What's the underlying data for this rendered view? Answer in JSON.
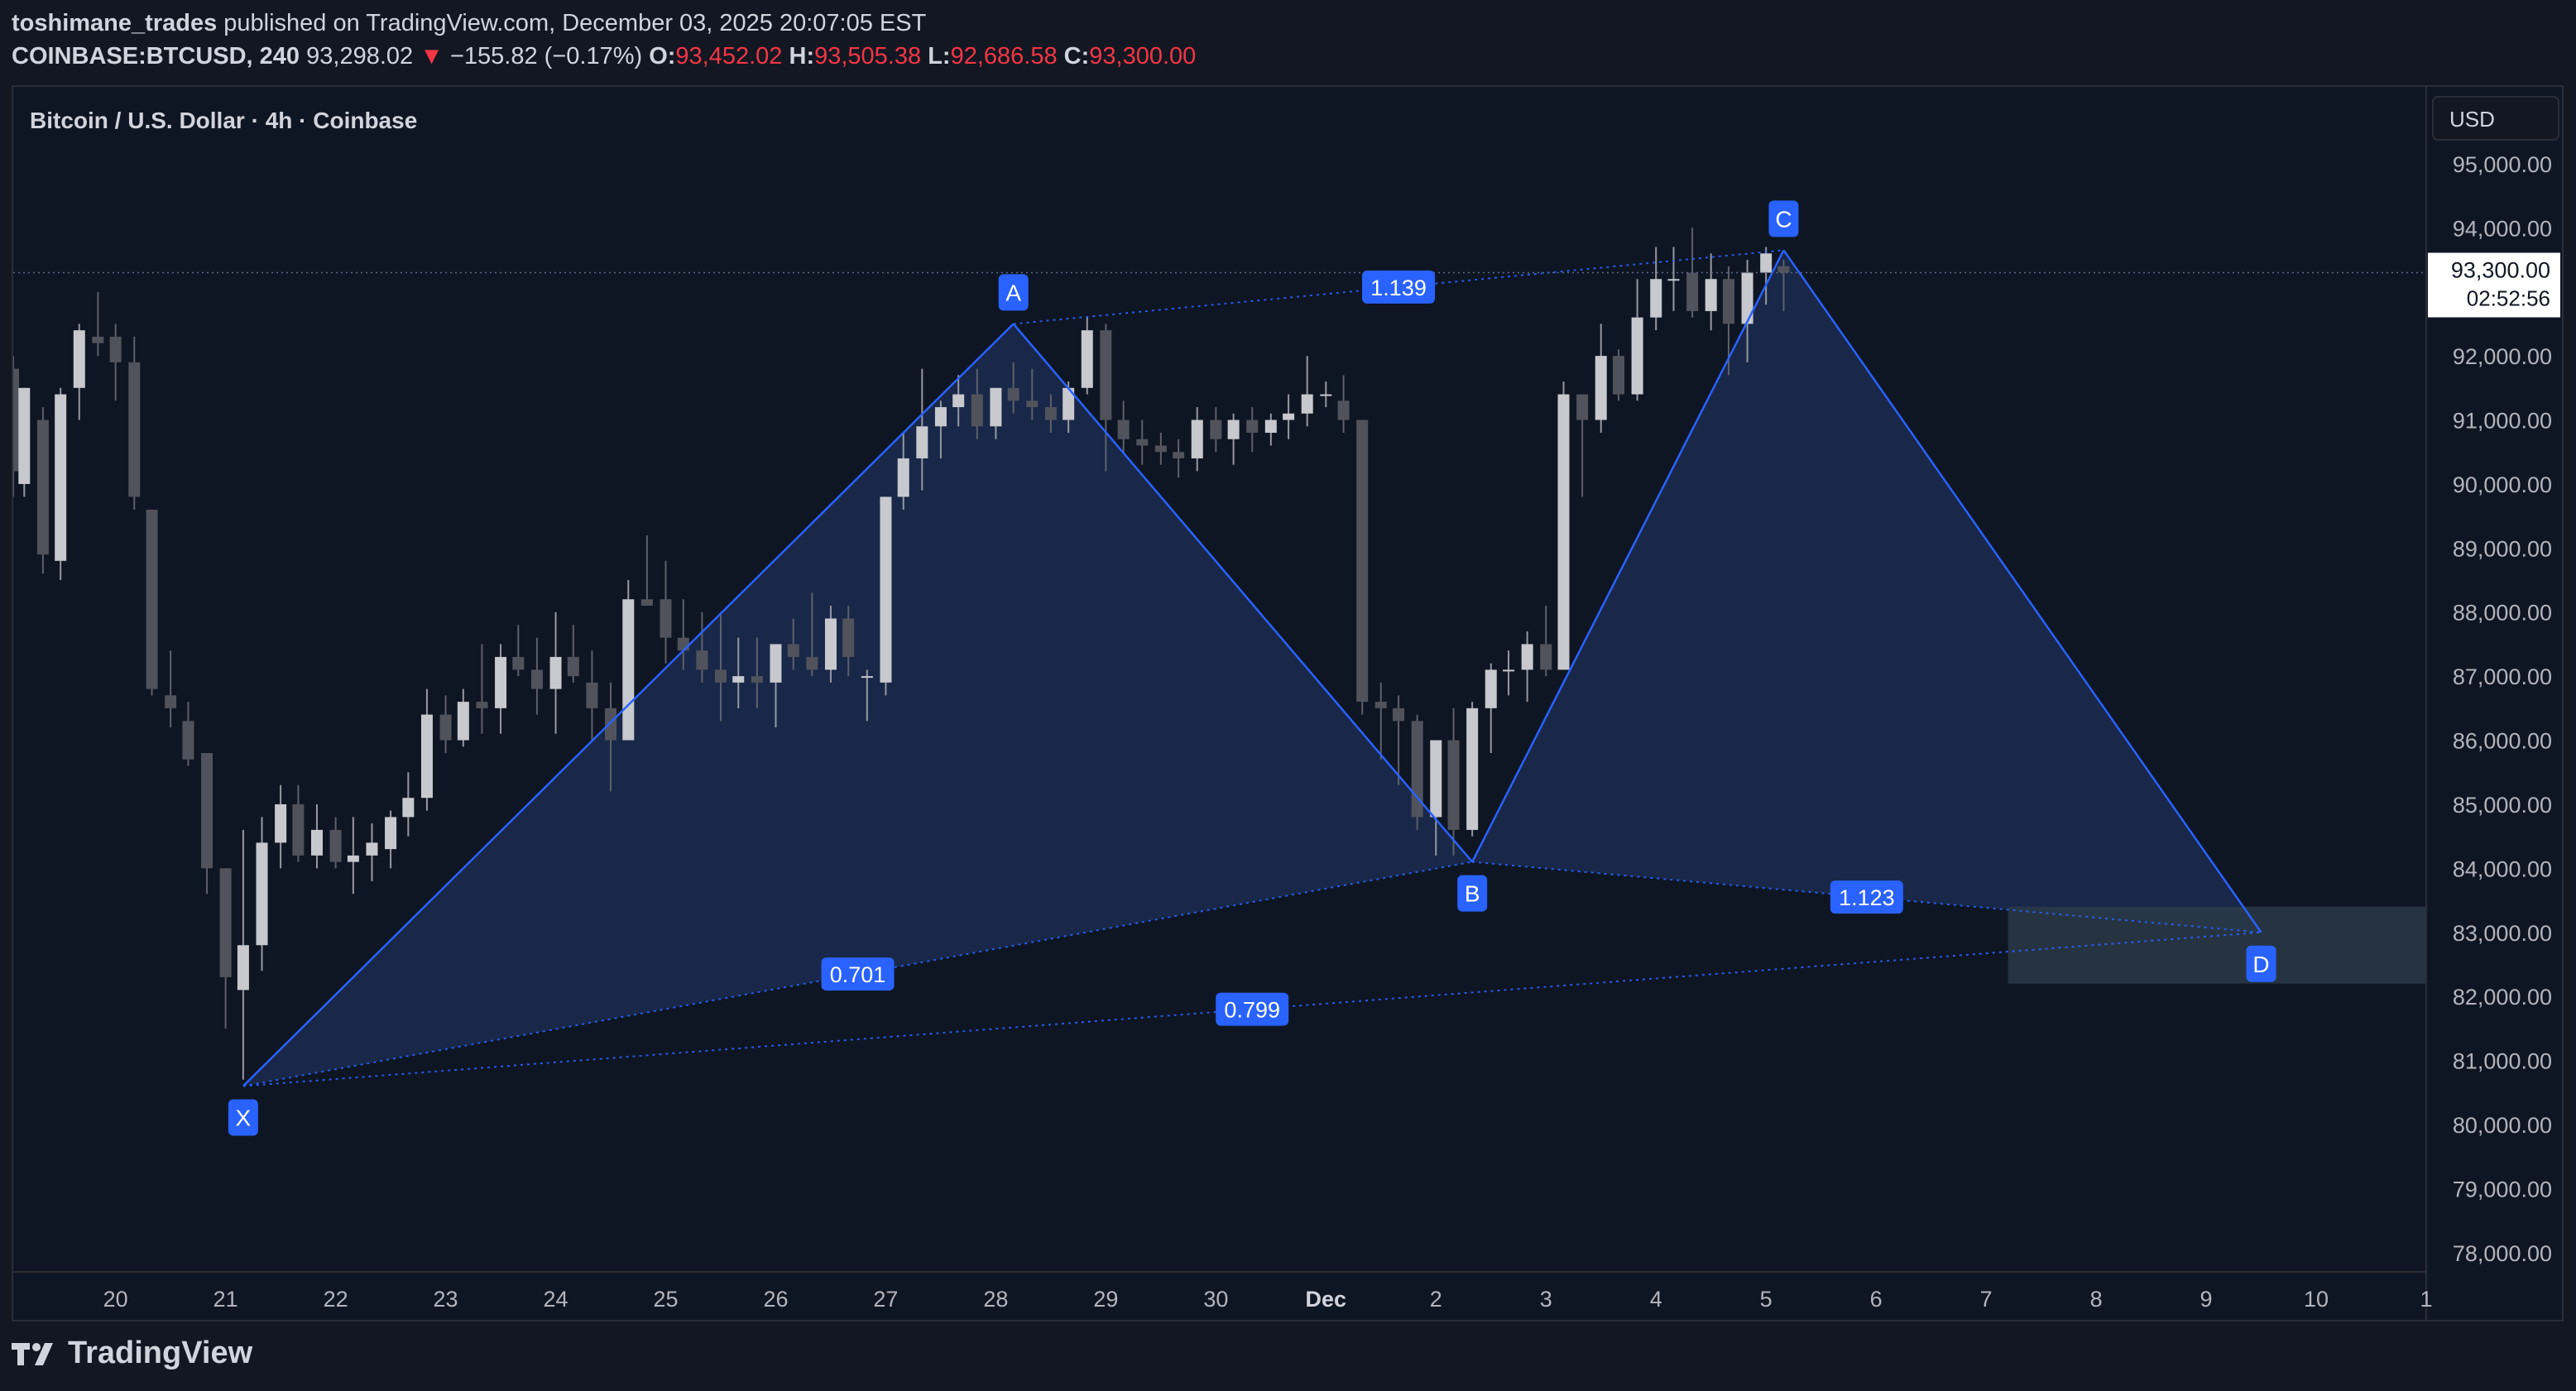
{
  "header": {
    "author": "toshimane_trades",
    "published": "published on TradingView.com, December 03, 2025 20:07:05 EST",
    "symbol": "COINBASE:BTCUSD, 240",
    "last": "93,298.02",
    "change_arrow": "▼",
    "change": "−155.82 (−0.17%)",
    "o_label": "O:",
    "o": "93,452.02",
    "h_label": "H:",
    "h": "93,505.38",
    "l_label": "L:",
    "l": "92,686.58",
    "c_label": "C:",
    "c": "93,300.00"
  },
  "legend": {
    "title": "Bitcoin / U.S. Dollar · 4h · Coinbase"
  },
  "currency_button": "USD",
  "price_label": {
    "price": "93,300.00",
    "countdown": "02:52:56"
  },
  "footer": {
    "brand": "TradingView",
    "logo_icon": "tradingview-logo-icon"
  },
  "colors": {
    "background": "#131722",
    "pane": "#0f1623",
    "candle": "#c7c9cf",
    "candle_dark": "#50535c",
    "pattern": "#2962ff",
    "pattern_fill": "#1e2f55",
    "target_zone": "#2a3a48",
    "down": "#f23645"
  },
  "chart_data": {
    "type": "candlestick",
    "title": "Bitcoin / U.S. Dollar · 4h · Coinbase",
    "y_axis": {
      "ticks": [
        "95,000.00",
        "94,000.00",
        "93,000.00",
        "92,000.00",
        "91,000.00",
        "90,000.00",
        "89,000.00",
        "88,000.00",
        "87,000.00",
        "86,000.00",
        "85,000.00",
        "84,000.00",
        "83,000.00",
        "82,000.00",
        "81,000.00",
        "80,000.00",
        "79,000.00",
        "78,000.00"
      ],
      "tick_values": [
        95000,
        94000,
        93000,
        92000,
        91000,
        90000,
        89000,
        88000,
        87000,
        86000,
        85000,
        84000,
        83000,
        82000,
        81000,
        80000,
        79000,
        78000
      ],
      "ylim": [
        77700,
        96200
      ]
    },
    "x_axis": {
      "labels": [
        "9",
        "20",
        "21",
        "22",
        "23",
        "24",
        "25",
        "26",
        "27",
        "28",
        "29",
        "30",
        "Dec",
        "2",
        "3",
        "4",
        "5",
        "6",
        "7",
        "8",
        "9",
        "10",
        "1"
      ],
      "day_positions": [
        -1,
        0,
        1,
        2,
        3,
        4,
        5,
        6,
        7,
        8,
        9,
        10,
        11,
        12,
        13,
        14,
        15,
        16,
        17,
        18,
        19,
        20,
        21
      ],
      "xlim": [
        -0.93,
        21.0
      ]
    },
    "last_price": 93300,
    "candles": [
      [
        -0.93,
        91800,
        92000,
        89800,
        90200
      ],
      [
        -0.83,
        90000,
        91500,
        89800,
        91500
      ],
      [
        -0.66,
        91000,
        91200,
        88600,
        88900
      ],
      [
        -0.5,
        88800,
        91500,
        88500,
        91400
      ],
      [
        -0.33,
        91500,
        92500,
        91000,
        92400
      ],
      [
        -0.16,
        92300,
        93000,
        92000,
        92200
      ],
      [
        0,
        92300,
        92500,
        91300,
        91900
      ],
      [
        0.17,
        91900,
        92300,
        89600,
        89800
      ],
      [
        0.33,
        89600,
        89600,
        86700,
        86800
      ],
      [
        0.5,
        86700,
        87400,
        86200,
        86500
      ],
      [
        0.66,
        86300,
        86600,
        85600,
        85700
      ],
      [
        0.83,
        85800,
        85800,
        83600,
        84000
      ],
      [
        1.0,
        84000,
        84000,
        81500,
        82300
      ],
      [
        1.16,
        82100,
        84600,
        80700,
        82800
      ],
      [
        1.33,
        82800,
        84800,
        82400,
        84400
      ],
      [
        1.5,
        84400,
        85300,
        84000,
        85000
      ],
      [
        1.66,
        85000,
        85300,
        84100,
        84200
      ],
      [
        1.83,
        84200,
        85000,
        84000,
        84600
      ],
      [
        2.0,
        84600,
        84800,
        84000,
        84100
      ],
      [
        2.16,
        84100,
        84800,
        83600,
        84200
      ],
      [
        2.33,
        84200,
        84700,
        83800,
        84400
      ],
      [
        2.5,
        84300,
        84900,
        84000,
        84800
      ],
      [
        2.66,
        84800,
        85500,
        84500,
        85100
      ],
      [
        2.83,
        85100,
        86800,
        84900,
        86400
      ],
      [
        3.0,
        86400,
        86700,
        85800,
        86000
      ],
      [
        3.16,
        86000,
        86800,
        85900,
        86600
      ],
      [
        3.33,
        86600,
        87500,
        86100,
        86500
      ],
      [
        3.5,
        86500,
        87500,
        86100,
        87300
      ],
      [
        3.66,
        87300,
        87800,
        87000,
        87100
      ],
      [
        3.83,
        87100,
        87600,
        86400,
        86800
      ],
      [
        4.0,
        86800,
        88000,
        86100,
        87300
      ],
      [
        4.16,
        87300,
        87800,
        86900,
        87000
      ],
      [
        4.33,
        86900,
        87400,
        86000,
        86500
      ],
      [
        4.5,
        86500,
        86900,
        85200,
        86000
      ],
      [
        4.66,
        86000,
        88500,
        86100,
        88200
      ],
      [
        4.83,
        88200,
        89200,
        88100,
        88100
      ],
      [
        5.0,
        88200,
        88800,
        87200,
        87600
      ],
      [
        5.16,
        87600,
        88200,
        87100,
        87400
      ],
      [
        5.33,
        87400,
        88000,
        86900,
        87100
      ],
      [
        5.5,
        87100,
        88000,
        86300,
        86900
      ],
      [
        5.66,
        86900,
        87600,
        86500,
        87000
      ],
      [
        5.83,
        87000,
        87600,
        86500,
        86900
      ],
      [
        6.0,
        86900,
        87500,
        86200,
        87500
      ],
      [
        6.16,
        87500,
        87900,
        87100,
        87300
      ],
      [
        6.33,
        87300,
        88300,
        87000,
        87100
      ],
      [
        6.5,
        87100,
        88100,
        86900,
        87900
      ],
      [
        6.66,
        87900,
        88100,
        87000,
        87300
      ],
      [
        6.83,
        87000,
        87100,
        86300,
        87000
      ],
      [
        7.0,
        86900,
        89800,
        86700,
        89800
      ],
      [
        7.16,
        89800,
        90800,
        89600,
        90400
      ],
      [
        7.33,
        90400,
        91800,
        89900,
        90900
      ],
      [
        7.5,
        90900,
        91300,
        90400,
        91200
      ],
      [
        7.66,
        91200,
        91700,
        90900,
        91400
      ],
      [
        7.83,
        91400,
        91800,
        90700,
        90900
      ],
      [
        8.0,
        90900,
        91500,
        90700,
        91500
      ],
      [
        8.16,
        91500,
        91900,
        91100,
        91300
      ],
      [
        8.33,
        91300,
        91800,
        91000,
        91200
      ],
      [
        8.5,
        91200,
        91400,
        90800,
        91000
      ],
      [
        8.66,
        91000,
        91600,
        90800,
        91500
      ],
      [
        8.83,
        91500,
        92600,
        91400,
        92400
      ],
      [
        9.0,
        92400,
        92500,
        90200,
        91000
      ],
      [
        9.16,
        91000,
        91300,
        90500,
        90700
      ],
      [
        9.33,
        90700,
        91000,
        90300,
        90600
      ],
      [
        9.5,
        90600,
        90800,
        90300,
        90500
      ],
      [
        9.66,
        90500,
        90700,
        90100,
        90400
      ],
      [
        9.83,
        90400,
        91200,
        90200,
        91000
      ],
      [
        10.0,
        91000,
        91200,
        90500,
        90700
      ],
      [
        10.16,
        90700,
        91100,
        90300,
        91000
      ],
      [
        10.33,
        91000,
        91200,
        90500,
        90800
      ],
      [
        10.5,
        90800,
        91100,
        90600,
        91000
      ],
      [
        10.66,
        91000,
        91400,
        90700,
        91100
      ],
      [
        10.83,
        91100,
        92000,
        90900,
        91400
      ],
      [
        11.0,
        91400,
        91600,
        91200,
        91400
      ],
      [
        11.16,
        91300,
        91700,
        90800,
        91000
      ],
      [
        11.33,
        91000,
        91000,
        86400,
        86600
      ],
      [
        11.5,
        86600,
        86900,
        85700,
        86500
      ],
      [
        11.66,
        86500,
        86700,
        85300,
        86300
      ],
      [
        11.83,
        86300,
        86400,
        84600,
        84800
      ],
      [
        12.0,
        84800,
        86000,
        84200,
        86000
      ],
      [
        12.16,
        86000,
        86500,
        84200,
        84600
      ],
      [
        12.33,
        84600,
        86600,
        84500,
        86500
      ],
      [
        12.5,
        86500,
        87200,
        85800,
        87100
      ],
      [
        12.66,
        87100,
        87400,
        86700,
        87100
      ],
      [
        12.83,
        87100,
        87700,
        86600,
        87500
      ],
      [
        13.0,
        87500,
        88100,
        87000,
        87100
      ],
      [
        13.16,
        87100,
        91600,
        87100,
        91400
      ],
      [
        13.33,
        91400,
        91400,
        89800,
        91000
      ],
      [
        13.5,
        91000,
        92500,
        90800,
        92000
      ],
      [
        13.66,
        92000,
        92100,
        91300,
        91400
      ],
      [
        13.83,
        91400,
        93200,
        91300,
        92600
      ],
      [
        14.0,
        92600,
        93700,
        92400,
        93200
      ],
      [
        14.16,
        93200,
        93700,
        92700,
        93200
      ],
      [
        14.33,
        93300,
        94000,
        92600,
        92700
      ],
      [
        14.5,
        92700,
        93600,
        92400,
        93200
      ],
      [
        14.66,
        93200,
        93400,
        91700,
        92500
      ],
      [
        14.83,
        92500,
        93500,
        91900,
        93300
      ],
      [
        15.0,
        93300,
        93700,
        92800,
        93600
      ],
      [
        15.16,
        93400,
        93500,
        92700,
        93300
      ]
    ],
    "harmonic_pattern": {
      "points": [
        {
          "label": "X",
          "day": 1.16,
          "price": 80600
        },
        {
          "label": "A",
          "day": 8.16,
          "price": 92500
        },
        {
          "label": "B",
          "day": 12.33,
          "price": 84100
        },
        {
          "label": "C",
          "day": 15.16,
          "price": 93650
        },
        {
          "label": "D",
          "day": 19.5,
          "price": 83000
        }
      ],
      "ratios": [
        {
          "value": "1.139",
          "from": "A",
          "to": "C"
        },
        {
          "value": "0.701",
          "from": "X",
          "to": "B"
        },
        {
          "value": "1.123",
          "from": "B",
          "to": "D"
        },
        {
          "value": "0.799",
          "from": "X",
          "to": "D"
        }
      ]
    },
    "target_zone": {
      "day_from": 17.2,
      "day_to": null,
      "price_from": 82200,
      "price_to": 83400
    }
  }
}
